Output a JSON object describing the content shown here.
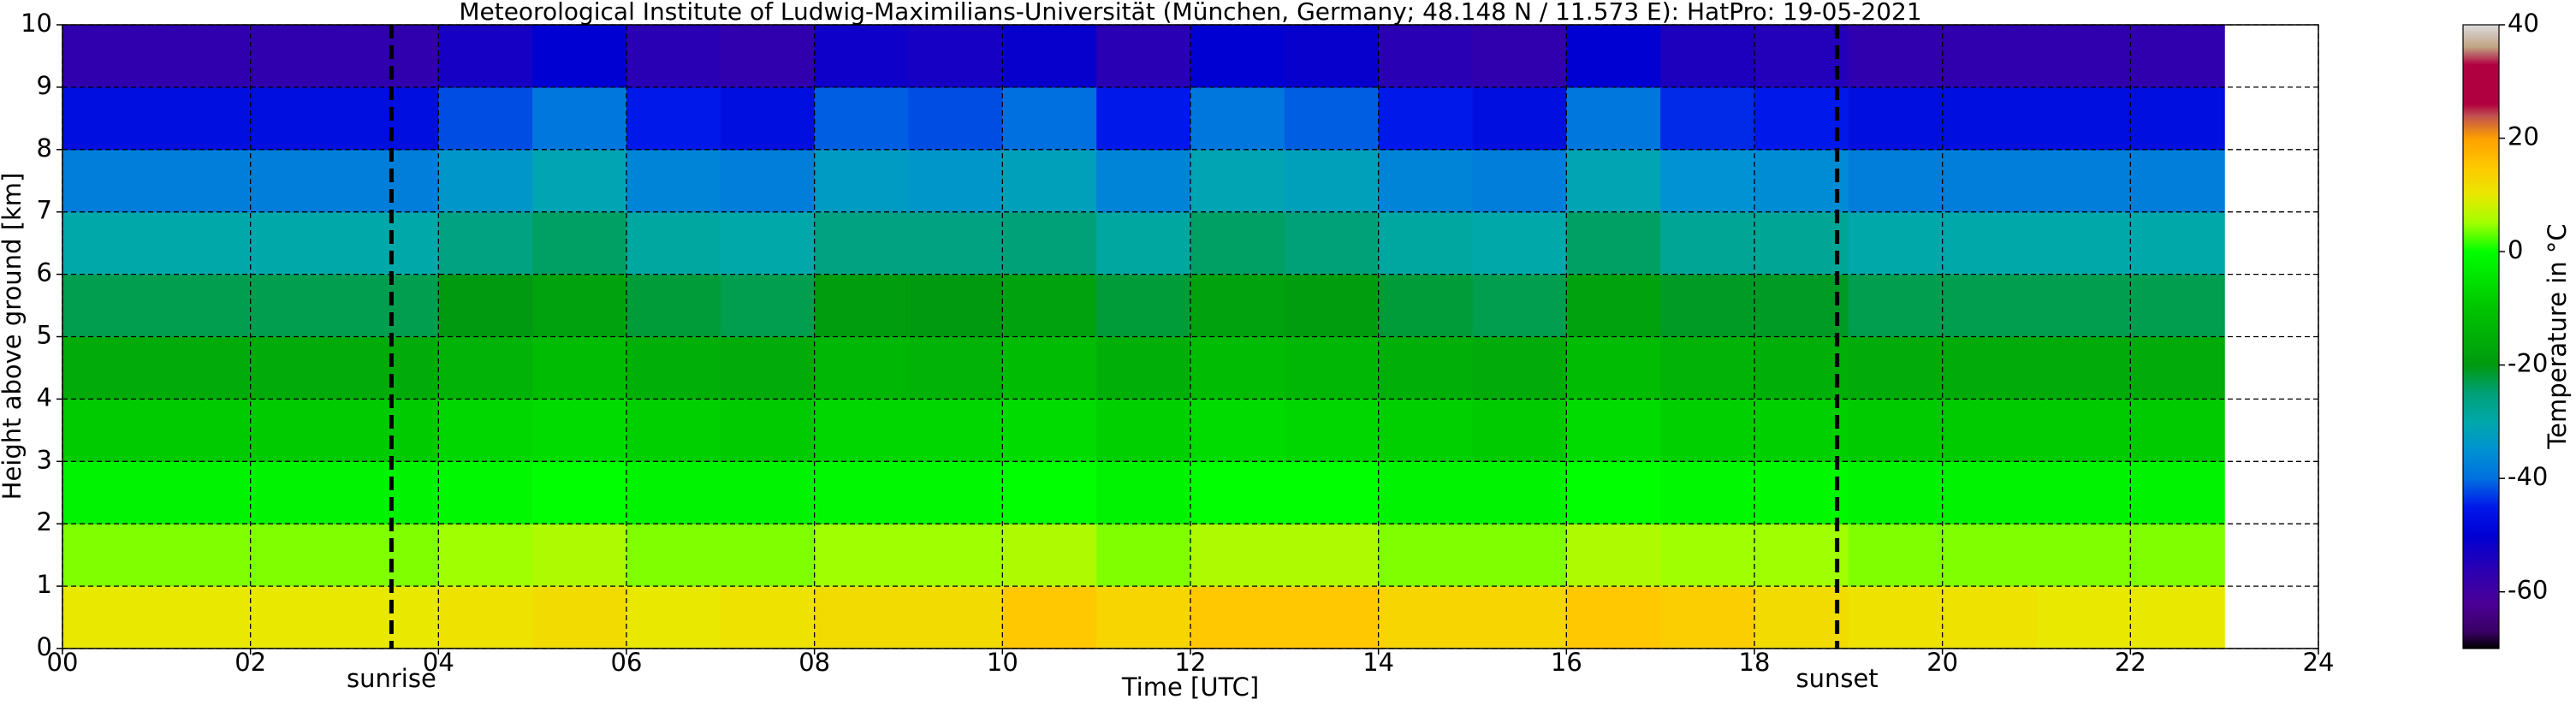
{
  "chart_data": {
    "type": "heatmap",
    "title": "Meteorological Institute of Ludwig-Maximilians-Universität (München, Germany; 48.148 N / 11.573 E):    HatPro: 19-05-2021",
    "xlabel": "Time [UTC]",
    "ylabel": "Height above ground [km]",
    "colorbar_label": "Temperature in °C",
    "xlim": [
      0,
      24
    ],
    "xticks": [
      {
        "value": 0,
        "label": "00"
      },
      {
        "value": 2,
        "label": "02"
      },
      {
        "value": 4,
        "label": "04"
      },
      {
        "value": 6,
        "label": "06"
      },
      {
        "value": 8,
        "label": "08"
      },
      10,
      12,
      14,
      16,
      18,
      20,
      22,
      24
    ],
    "ylim": [
      0,
      10
    ],
    "yticks": [
      0,
      1,
      2,
      3,
      4,
      5,
      6,
      7,
      8,
      9,
      10
    ],
    "grid": true,
    "clim": [
      -70,
      40
    ],
    "cticks": [
      -60,
      -40,
      -20,
      0,
      20,
      40
    ],
    "colorscale": [
      [
        -70,
        "#000000"
      ],
      [
        -67,
        "#3a0066"
      ],
      [
        -62,
        "#4b0096"
      ],
      [
        -56,
        "#2a00b4"
      ],
      [
        -50,
        "#0000d2"
      ],
      [
        -45,
        "#0018ea"
      ],
      [
        -40,
        "#0070e0"
      ],
      [
        -35,
        "#0092d2"
      ],
      [
        -30,
        "#00a8aa"
      ],
      [
        -25,
        "#00a078"
      ],
      [
        -20,
        "#009a10"
      ],
      [
        -10,
        "#00c400"
      ],
      [
        0,
        "#00ff00"
      ],
      [
        5,
        "#a0ff00"
      ],
      [
        10,
        "#e8e800"
      ],
      [
        15,
        "#ffc800"
      ],
      [
        20,
        "#ffa000"
      ],
      [
        24,
        "#c05050"
      ],
      [
        26,
        "#b00040"
      ],
      [
        33,
        "#b00040"
      ],
      [
        36,
        "#c0a080"
      ],
      [
        40,
        "#dddddd"
      ]
    ],
    "events": [
      {
        "label": "sunrise",
        "x": 3.5
      },
      {
        "label": "sunset",
        "x": 18.88
      }
    ],
    "x_edges": [
      0,
      1,
      2,
      3,
      4,
      5,
      6,
      7,
      8,
      9,
      10,
      11,
      12,
      13,
      14,
      15,
      16,
      17,
      18,
      19,
      20,
      21,
      22,
      23
    ],
    "y_edges": [
      0,
      1,
      2,
      3,
      4,
      5,
      6,
      7,
      8,
      9,
      10
    ],
    "values": [
      [
        10,
        10,
        10,
        10,
        11,
        12,
        10,
        11,
        12,
        12,
        15,
        13,
        15,
        15,
        13,
        13,
        15,
        14,
        12,
        11,
        11,
        10,
        10
      ],
      [
        4,
        4,
        4,
        4,
        5,
        6,
        4,
        4,
        5,
        5,
        6,
        4,
        6,
        6,
        4,
        4,
        6,
        5,
        5,
        4,
        4,
        4,
        4
      ],
      [
        -2,
        -2,
        -2,
        -2,
        -1,
        0,
        -2,
        -2,
        -1,
        -1,
        0,
        -2,
        0,
        0,
        -2,
        -2,
        0,
        -1,
        -1,
        -2,
        -2,
        -2,
        -2
      ],
      [
        -9,
        -9,
        -9,
        -9,
        -7,
        -6,
        -8,
        -9,
        -7,
        -7,
        -6,
        -8,
        -6,
        -7,
        -8,
        -9,
        -6,
        -8,
        -8,
        -9,
        -9,
        -9,
        -9
      ],
      [
        -16,
        -16,
        -16,
        -16,
        -14,
        -12,
        -15,
        -16,
        -13,
        -14,
        -12,
        -15,
        -12,
        -13,
        -15,
        -16,
        -12,
        -14,
        -15,
        -16,
        -16,
        -16,
        -16
      ],
      [
        -23,
        -23,
        -23,
        -23,
        -20,
        -18,
        -22,
        -23,
        -19,
        -20,
        -18,
        -22,
        -18,
        -19,
        -22,
        -23,
        -18,
        -21,
        -21,
        -23,
        -23,
        -23,
        -23
      ],
      [
        -30,
        -30,
        -30,
        -30,
        -26,
        -24,
        -29,
        -30,
        -26,
        -26,
        -25,
        -29,
        -24,
        -25,
        -29,
        -30,
        -24,
        -28,
        -28,
        -30,
        -30,
        -30,
        -30
      ],
      [
        -38,
        -38,
        -38,
        -38,
        -34,
        -31,
        -37,
        -38,
        -33,
        -34,
        -32,
        -37,
        -31,
        -32,
        -37,
        -38,
        -31,
        -35,
        -36,
        -38,
        -38,
        -38,
        -38
      ],
      [
        -47,
        -47,
        -47,
        -47,
        -42,
        -39,
        -45,
        -47,
        -41,
        -42,
        -40,
        -45,
        -39,
        -41,
        -45,
        -47,
        -39,
        -44,
        -45,
        -47,
        -47,
        -47,
        -47
      ],
      [
        -57,
        -57,
        -57,
        -57,
        -53,
        -50,
        -56,
        -57,
        -52,
        -53,
        -51,
        -56,
        -50,
        -51,
        -56,
        -57,
        -50,
        -54,
        -55,
        -57,
        -57,
        -57,
        -57
      ]
    ]
  }
}
